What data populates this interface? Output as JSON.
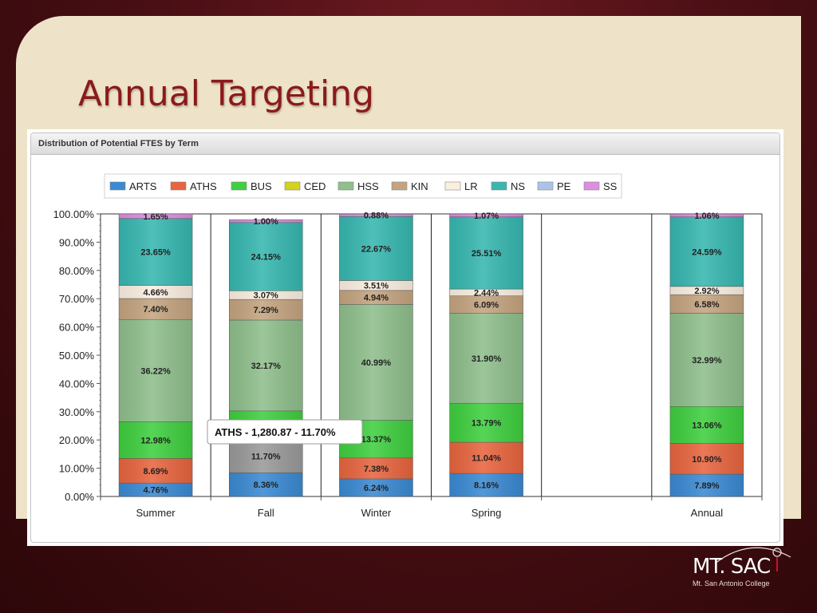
{
  "slide": {
    "title": "Annual Targeting"
  },
  "chart_panel": {
    "header": "Distribution of Potential FTES by Term"
  },
  "logo": {
    "main": "MT. SAC",
    "sub": "Mt. San Antonio College"
  },
  "tooltip": {
    "text": "ATHS - 1,280.87 - 11.70%"
  },
  "colors": {
    "ARTS": "#3a8ad3",
    "ATHS": "#e8653f",
    "BUS": "#3fcf3f",
    "CED": "#d4d21c",
    "HSS": "#8fbf8c",
    "KIN": "#c4a480",
    "LR": "#fbefe0",
    "NS": "#37b7b0",
    "PE": "#a9c4e6",
    "SS": "#dc8fe0",
    "highlight": "#9a9a9a"
  },
  "chart_data": {
    "type": "bar",
    "stacked": true,
    "percent": true,
    "categories": [
      "Summer",
      "Fall",
      "Winter",
      "Spring",
      "",
      "Annual"
    ],
    "ylim": [
      0,
      100
    ],
    "yticks": [
      "0.00%",
      "10.00%",
      "20.00%",
      "30.00%",
      "40.00%",
      "50.00%",
      "60.00%",
      "70.00%",
      "80.00%",
      "90.00%",
      "100.00%"
    ],
    "legend_position": "top",
    "highlighted": {
      "series": "ATHS",
      "category": "Fall"
    },
    "series": [
      {
        "name": "ARTS",
        "values": [
          4.76,
          8.36,
          6.24,
          8.16,
          null,
          7.89
        ],
        "labels": [
          "4.76%",
          "8.36%",
          "6.24%",
          "8.16%",
          "",
          "7.89%"
        ]
      },
      {
        "name": "ATHS",
        "values": [
          8.69,
          11.7,
          7.38,
          11.04,
          null,
          10.9
        ],
        "labels": [
          "8.69%",
          "11.70%",
          "7.38%",
          "11.04%",
          "",
          "10.90%"
        ]
      },
      {
        "name": "BUS",
        "values": [
          12.98,
          10.21,
          13.37,
          13.79,
          null,
          13.06
        ],
        "labels": [
          "12.98%",
          "",
          "13.37%",
          "13.79%",
          "",
          "13.06%"
        ]
      },
      {
        "name": "CED",
        "values": [
          0,
          0,
          0,
          0,
          null,
          0
        ],
        "labels": [
          "",
          "",
          "",
          "",
          "",
          ""
        ]
      },
      {
        "name": "HSS",
        "values": [
          36.22,
          32.17,
          40.99,
          31.9,
          null,
          32.99
        ],
        "labels": [
          "36.22%",
          "32.17%",
          "40.99%",
          "31.90%",
          "",
          "32.99%"
        ]
      },
      {
        "name": "KIN",
        "values": [
          7.4,
          7.29,
          4.94,
          6.09,
          null,
          6.58
        ],
        "labels": [
          "7.40%",
          "7.29%",
          "4.94%",
          "6.09%",
          "",
          "6.58%"
        ]
      },
      {
        "name": "LR",
        "values": [
          4.66,
          3.07,
          3.51,
          2.44,
          null,
          2.92
        ],
        "labels": [
          "4.66%",
          "3.07%",
          "3.51%",
          "2.44%",
          "",
          "2.92%"
        ]
      },
      {
        "name": "NS",
        "values": [
          23.65,
          24.15,
          22.67,
          25.51,
          null,
          24.59
        ],
        "labels": [
          "23.65%",
          "24.15%",
          "22.67%",
          "25.51%",
          "",
          "24.59%"
        ]
      },
      {
        "name": "PE",
        "values": [
          0,
          0,
          0,
          0,
          null,
          0
        ],
        "labels": [
          "",
          "",
          "",
          "",
          "",
          ""
        ]
      },
      {
        "name": "SS",
        "values": [
          1.65,
          1.0,
          0.88,
          1.07,
          null,
          1.06
        ],
        "labels": [
          "1.65%",
          "1.00%",
          "0.88%",
          "1.07%",
          "",
          "1.06%"
        ]
      }
    ]
  }
}
